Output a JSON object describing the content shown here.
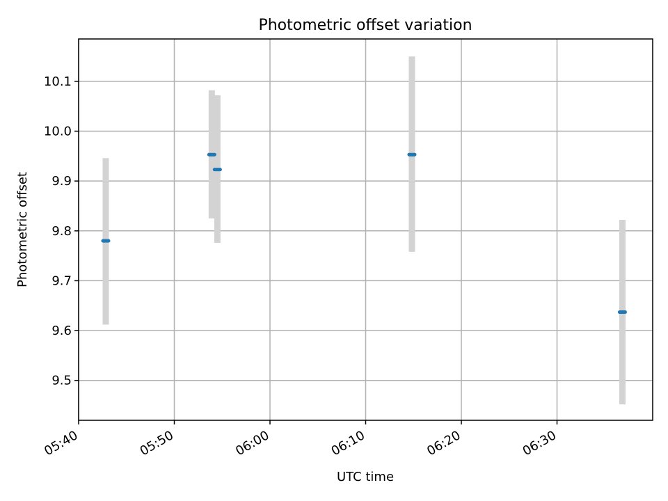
{
  "chart_data": {
    "type": "scatter",
    "title": "Photometric offset variation",
    "xlabel": "UTC time",
    "ylabel": "Photometric offset",
    "x_ticks": [
      "05:40",
      "05:50",
      "06:00",
      "06:10",
      "06:20",
      "06:30"
    ],
    "y_ticks": [
      "9.5",
      "9.6",
      "9.7",
      "9.8",
      "9.9",
      "10.0",
      "10.1"
    ],
    "xlim": [
      "05:40",
      "06:40"
    ],
    "ylim": [
      9.42,
      10.185
    ],
    "grid": true,
    "points": [
      {
        "x": "05:42:50",
        "y": 9.78,
        "err_low": 9.612,
        "err_high": 9.946
      },
      {
        "x": "05:53:55",
        "y": 9.953,
        "err_low": 9.825,
        "err_high": 10.082
      },
      {
        "x": "05:54:30",
        "y": 9.923,
        "err_low": 9.776,
        "err_high": 10.072
      },
      {
        "x": "06:14:50",
        "y": 9.953,
        "err_low": 9.758,
        "err_high": 10.15
      },
      {
        "x": "06:36:50",
        "y": 9.637,
        "err_low": 9.452,
        "err_high": 9.822
      }
    ],
    "colors": {
      "marker": "#1f77b4",
      "errorbar": "#d3d3d3"
    }
  }
}
